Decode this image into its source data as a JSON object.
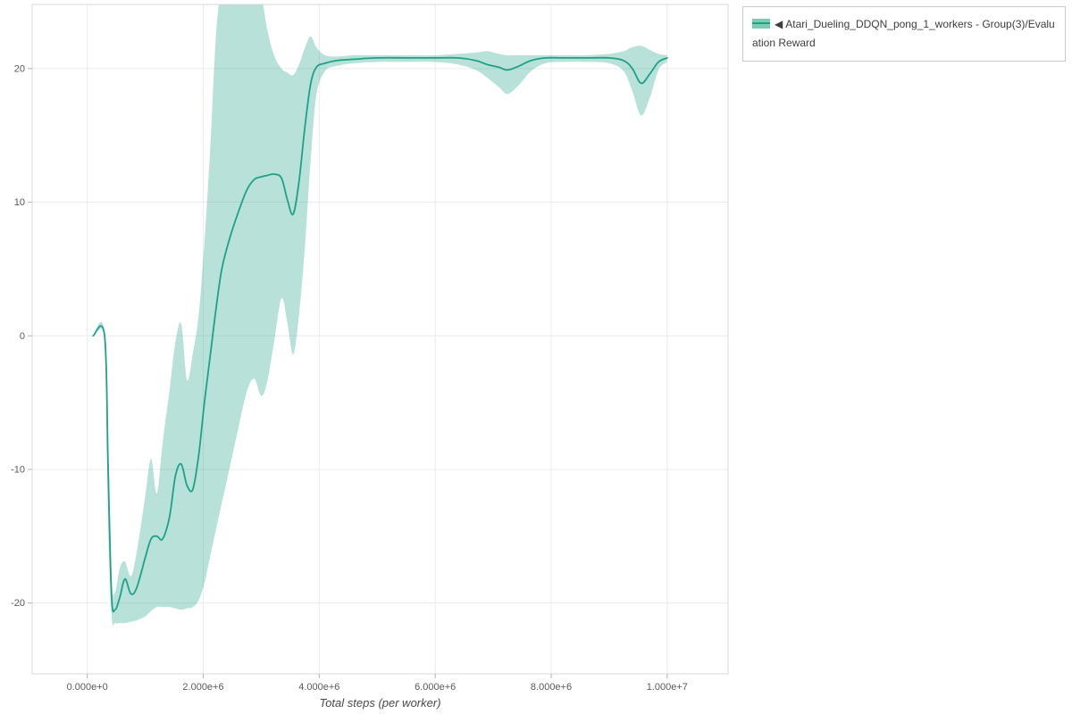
{
  "page": {
    "background": "#ffffff"
  },
  "legend": {
    "marker": "◀",
    "label": "Atari_Dueling_DDQN_pong_1_workers - Group(3)/Evaluation Reward",
    "line_color": "#1fa188",
    "band_color": "#7ecbb4",
    "position": "top-right-outside"
  },
  "chart_data": {
    "type": "line",
    "title": "",
    "xlabel": "Total steps (per worker)",
    "ylabel": "",
    "grid": true,
    "xlim": [
      -950000,
      11050000
    ],
    "ylim": [
      -25.3,
      24.8
    ],
    "x_ticks": {
      "values": [
        0,
        2000000,
        4000000,
        6000000,
        8000000,
        10000000
      ],
      "labels": [
        "0.000e+0",
        "2.000e+6",
        "4.000e+6",
        "6.000e+6",
        "8.000e+6",
        "1.000e+7"
      ]
    },
    "y_ticks": {
      "values": [
        -20,
        -10,
        0,
        10,
        20
      ],
      "labels": [
        "-20",
        "-10",
        "0",
        "10",
        "20"
      ]
    },
    "series": [
      {
        "name": "Atari_Dueling_DDQN_pong_1_workers - Group(3)/Evaluation Reward",
        "color": "#1fa188",
        "band_color": "#1fa188",
        "band_opacity": 0.32,
        "x": [
          100000,
          300000,
          360000,
          420000,
          480000,
          560000,
          650000,
          750000,
          850000,
          1000000,
          1100000,
          1200000,
          1300000,
          1420000,
          1520000,
          1620000,
          1720000,
          1820000,
          1920000,
          2020000,
          2120000,
          2220000,
          2320000,
          2450000,
          2600000,
          2750000,
          2880000,
          3000000,
          3100000,
          3220000,
          3350000,
          3450000,
          3550000,
          3650000,
          3750000,
          3850000,
          3950000,
          4100000,
          4300000,
          4600000,
          5000000,
          5500000,
          6000000,
          6400000,
          6700000,
          6900000,
          7100000,
          7250000,
          7450000,
          7650000,
          7900000,
          8200000,
          8600000,
          9000000,
          9250000,
          9400000,
          9550000,
          9700000,
          9850000,
          10000000
        ],
        "mean": [
          0,
          0,
          -10,
          -19.5,
          -20.5,
          -19.6,
          -18.2,
          -19.3,
          -18.9,
          -16.6,
          -15.2,
          -15.0,
          -15.2,
          -13.5,
          -10.5,
          -9.6,
          -11.2,
          -11.5,
          -9.0,
          -5.0,
          -1.5,
          2.0,
          5.0,
          7.2,
          9.2,
          10.9,
          11.7,
          11.9,
          12.0,
          12.1,
          11.8,
          10.2,
          9.1,
          11.5,
          15.5,
          18.8,
          20.1,
          20.4,
          20.6,
          20.7,
          20.8,
          20.8,
          20.8,
          20.8,
          20.6,
          20.3,
          20.1,
          19.9,
          20.2,
          20.6,
          20.8,
          20.8,
          20.8,
          20.8,
          20.6,
          20.0,
          18.9,
          19.6,
          20.5,
          20.8
        ],
        "lower": [
          0,
          0,
          -14,
          -21.0,
          -21.5,
          -21.5,
          -21.5,
          -21.4,
          -21.3,
          -21.0,
          -20.6,
          -20.3,
          -20.3,
          -20.3,
          -20.4,
          -20.5,
          -20.4,
          -20.3,
          -19.8,
          -18.5,
          -16.5,
          -14.5,
          -12.5,
          -10.0,
          -7.0,
          -4.2,
          -3.2,
          -4.5,
          -3.5,
          -0.5,
          2.8,
          1.0,
          -1.4,
          1.5,
          6.5,
          13.0,
          18.0,
          19.8,
          20.2,
          20.4,
          20.5,
          20.5,
          20.5,
          20.3,
          19.9,
          19.3,
          18.6,
          18.1,
          18.8,
          19.8,
          20.4,
          20.5,
          20.5,
          20.4,
          19.8,
          18.3,
          16.5,
          17.8,
          19.9,
          20.5
        ],
        "upper": [
          0,
          0,
          -7,
          -18.0,
          -19.2,
          -17.4,
          -16.9,
          -18.0,
          -16.3,
          -12.0,
          -9.2,
          -11.8,
          -8.0,
          -4.0,
          -0.5,
          0.9,
          -3.3,
          -1.3,
          1.5,
          7.0,
          14.0,
          22.5,
          26.0,
          26.0,
          26.0,
          26.0,
          26.0,
          25.5,
          23.0,
          21.0,
          20.0,
          19.7,
          19.5,
          20.3,
          21.5,
          22.4,
          21.6,
          21.0,
          20.9,
          21.0,
          21.0,
          21.0,
          21.0,
          21.1,
          21.2,
          21.3,
          21.1,
          21.0,
          21.0,
          21.0,
          21.0,
          21.0,
          21.0,
          21.1,
          21.3,
          21.6,
          21.7,
          21.4,
          21.1,
          21.0
        ]
      }
    ]
  }
}
